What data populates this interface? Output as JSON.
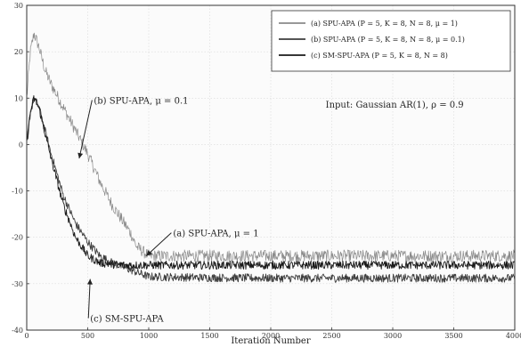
{
  "chart_data": {
    "type": "line",
    "title": "",
    "xlabel": "Iteration Number",
    "ylabel": "",
    "xlim": [
      0,
      4000
    ],
    "ylim": [
      -40,
      30
    ],
    "xticks": [
      0,
      500,
      1000,
      1500,
      2000,
      2500,
      3000,
      3500,
      4000
    ],
    "yticks": [
      30,
      20,
      10,
      0,
      -10,
      -20,
      -30,
      -40
    ],
    "xtick_labels": [
      "0",
      "500",
      "1000",
      "1500",
      "2000",
      "2500",
      "3000",
      "3500",
      "4000"
    ],
    "ytick_labels": [
      "30",
      "20",
      "10",
      "0",
      "-10",
      "-20",
      "-30",
      "-40"
    ],
    "grid": true,
    "legend_position": "top-right",
    "series": [
      {
        "name": "(a) SPU-APA (P = 5, K = 8, N = 8, μ = 1)",
        "color": "#8a8a8a",
        "x": [
          0,
          30,
          60,
          100,
          150,
          200,
          300,
          400,
          500,
          600,
          700,
          800,
          850,
          900,
          1000,
          1500,
          2000,
          2500,
          3000,
          3500,
          4000
        ],
        "y": [
          10,
          20,
          24,
          21,
          16,
          13,
          8,
          3,
          -2,
          -8,
          -13,
          -17,
          -19,
          -22,
          -24,
          -24,
          -24,
          -24,
          -24,
          -24,
          -24
        ]
      },
      {
        "name": "(b) SPU-APA (P = 5, K = 8, N = 8, μ = 0.1)",
        "color": "#3d3d3d",
        "x": [
          0,
          30,
          60,
          100,
          200,
          300,
          400,
          500,
          600,
          700,
          800,
          900,
          1000,
          1500,
          2000,
          2500,
          3000,
          3500,
          4000
        ],
        "y": [
          0,
          7,
          10,
          8,
          -2,
          -11,
          -17,
          -21,
          -24,
          -25.5,
          -26.5,
          -27.5,
          -28.5,
          -28.7,
          -28.8,
          -28.8,
          -28.8,
          -28.8,
          -28.8
        ]
      },
      {
        "name": "(c) SM-SPU-APA (P = 5, K = 8, N = 8)",
        "color": "#1a1a1a",
        "x": [
          0,
          30,
          60,
          100,
          200,
          300,
          400,
          500,
          600,
          700,
          800,
          900,
          1000,
          1500,
          2000,
          2500,
          3000,
          3500,
          4000
        ],
        "y": [
          0,
          7,
          10,
          8,
          -3,
          -13,
          -20,
          -24,
          -25.5,
          -25.8,
          -26,
          -26,
          -26,
          -26,
          -26,
          -26,
          -26,
          -26,
          -26
        ]
      }
    ],
    "annotations": [
      {
        "text": "(b) SPU-APA, μ = 0.1",
        "x": 550,
        "y": 8.8,
        "arrow_to": {
          "x": 430,
          "y": -3
        }
      },
      {
        "text": "(a) SPU-APA, μ = 1",
        "x": 1200,
        "y": -19.8,
        "arrow_to": {
          "x": 980,
          "y": -24
        }
      },
      {
        "text": "(c) SM-SPU-APA",
        "x": 520,
        "y": -38.2,
        "arrow_to": {
          "x": 520,
          "y": -29
        }
      },
      {
        "text": "Input: Gaussian AR(1), ρ = 0.9",
        "x": 2450,
        "y": 7.9,
        "arrow_to": null
      }
    ]
  }
}
